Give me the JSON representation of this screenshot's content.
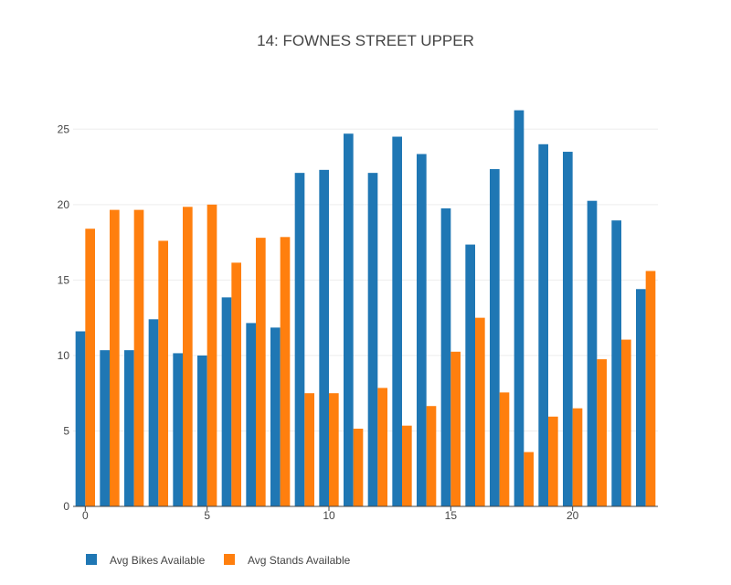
{
  "chart_data": {
    "type": "bar",
    "title": "14: FOWNES STREET UPPER",
    "xlabel": "",
    "ylabel": "",
    "x": [
      0,
      1,
      2,
      3,
      4,
      5,
      6,
      7,
      8,
      9,
      10,
      11,
      12,
      13,
      14,
      15,
      16,
      17,
      18,
      19,
      20,
      21,
      22,
      23
    ],
    "xticks": [
      0,
      5,
      10,
      15,
      20
    ],
    "yticks": [
      0,
      5,
      10,
      15,
      20,
      25
    ],
    "ylim": [
      0,
      27.5
    ],
    "xlim": [
      -0.5,
      23.5
    ],
    "grid": true,
    "legend_position": "bottom-left",
    "series": [
      {
        "name": "Avg Bikes Available",
        "color": "#1f77b4",
        "values": [
          11.6,
          10.35,
          10.35,
          12.4,
          10.15,
          10.0,
          13.85,
          12.15,
          11.85,
          22.1,
          22.3,
          24.7,
          22.1,
          24.5,
          23.35,
          19.75,
          17.35,
          22.35,
          26.25,
          24.0,
          23.5,
          20.25,
          18.95,
          14.4
        ]
      },
      {
        "name": "Avg Stands Available",
        "color": "#ff7f0e",
        "values": [
          18.4,
          19.65,
          19.65,
          17.6,
          19.85,
          20.0,
          16.15,
          17.8,
          17.85,
          7.5,
          7.5,
          5.15,
          7.85,
          5.35,
          6.65,
          10.25,
          12.5,
          7.55,
          3.6,
          5.95,
          6.5,
          9.75,
          11.05,
          15.6
        ]
      }
    ]
  }
}
